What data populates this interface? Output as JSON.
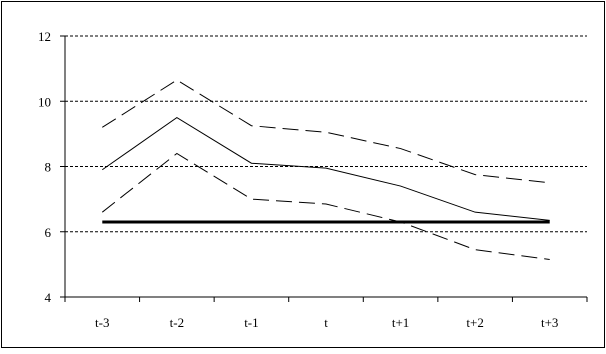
{
  "chart_data": {
    "type": "line",
    "title": "",
    "xlabel": "",
    "ylabel": "",
    "categories": [
      "t-3",
      "t-2",
      "t-1",
      "t",
      "t+1",
      "t+2",
      "t+3"
    ],
    "ylim": [
      4,
      12
    ],
    "yticks": [
      "4",
      "6",
      "8",
      "10",
      "12"
    ],
    "grid": true,
    "legend": "none",
    "series": [
      {
        "style": "dashed",
        "color": "#000000",
        "values": [
          9.2,
          10.65,
          9.25,
          9.05,
          8.55,
          7.75,
          7.5
        ]
      },
      {
        "style": "solid",
        "color": "#000000",
        "values": [
          7.9,
          9.5,
          8.1,
          7.95,
          7.4,
          6.6,
          6.35
        ]
      },
      {
        "style": "dashed",
        "color": "#000000",
        "values": [
          6.6,
          8.4,
          7.0,
          6.85,
          6.3,
          5.45,
          5.15
        ]
      },
      {
        "style": "bold",
        "color": "#000000",
        "values": [
          6.3,
          6.3,
          6.3,
          6.3,
          6.3,
          6.3,
          6.3
        ]
      }
    ]
  }
}
